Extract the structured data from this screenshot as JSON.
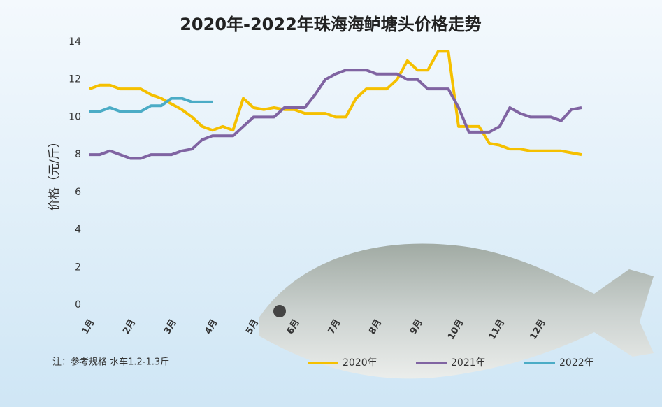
{
  "chart_data": {
    "type": "line",
    "title": "2020年-2022年珠海海鲈塘头价格走势",
    "y_label": "价格（元/斤）",
    "note": "注：参考规格  水车1.2-1.3斤",
    "categories": [
      "1月",
      null,
      null,
      null,
      "2月",
      null,
      null,
      null,
      "3月",
      null,
      null,
      null,
      "4月",
      null,
      null,
      null,
      "5月",
      null,
      null,
      null,
      "6月",
      null,
      null,
      null,
      "7月",
      null,
      null,
      null,
      "8月",
      null,
      null,
      null,
      "9月",
      null,
      null,
      null,
      "10月",
      null,
      null,
      null,
      "11月",
      null,
      null,
      null,
      "12月",
      null,
      null,
      null,
      null
    ],
    "series": [
      {
        "name": "2020年",
        "color": "#f5c000",
        "values": [
          11.5,
          11.7,
          11.7,
          11.5,
          11.5,
          11.5,
          11.2,
          11.0,
          10.7,
          10.4,
          10.0,
          9.5,
          9.3,
          9.5,
          9.3,
          11.0,
          10.5,
          10.4,
          10.5,
          10.4,
          10.4,
          10.2,
          10.2,
          10.2,
          10.0,
          10.0,
          11.0,
          11.5,
          11.5,
          11.5,
          12.0,
          13.0,
          12.5,
          12.5,
          13.5,
          13.5,
          9.5,
          9.5,
          9.5,
          8.6,
          8.5,
          8.3,
          8.3,
          8.2,
          8.2,
          8.2,
          8.2,
          8.1,
          8.0
        ]
      },
      {
        "name": "2021年",
        "color": "#8064a2",
        "values": [
          8.0,
          8.0,
          8.2,
          8.0,
          7.8,
          7.8,
          8.0,
          8.0,
          8.0,
          8.2,
          8.3,
          8.8,
          9.0,
          9.0,
          9.0,
          9.5,
          10.0,
          10.0,
          10.0,
          10.5,
          10.5,
          10.5,
          11.2,
          12.0,
          12.3,
          12.5,
          12.5,
          12.5,
          12.3,
          12.3,
          12.3,
          12.0,
          12.0,
          11.5,
          11.5,
          11.5,
          10.5,
          9.2,
          9.2,
          9.2,
          9.5,
          10.5,
          10.2,
          10.0,
          10.0,
          10.0,
          9.8,
          10.4,
          10.5
        ]
      },
      {
        "name": "2022年",
        "color": "#4bacc6",
        "values": [
          10.3,
          10.3,
          10.5,
          10.3,
          10.3,
          10.3,
          10.6,
          10.6,
          11.0,
          11.0,
          10.8,
          10.8,
          10.8,
          null,
          null,
          null,
          null,
          null,
          null,
          null,
          null,
          null,
          null,
          null,
          null,
          null,
          null,
          null,
          null,
          null,
          null,
          null,
          null,
          null,
          null,
          null,
          null,
          null,
          null,
          null,
          null,
          null,
          null,
          null,
          null,
          null,
          null,
          null,
          null
        ]
      }
    ],
    "ylim": [
      0,
      14
    ],
    "yticks": [
      0,
      2,
      4,
      6,
      8,
      10,
      12,
      14
    ],
    "grid": false
  }
}
